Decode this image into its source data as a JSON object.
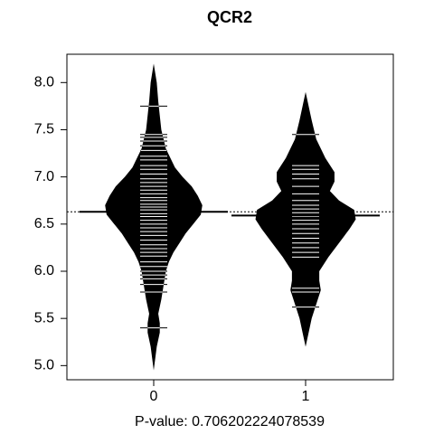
{
  "chart_data": {
    "type": "beanplot",
    "title": "QCR2",
    "xlabel": "P-value: 0.706202224078539",
    "categories": [
      "0",
      "1"
    ],
    "ylim": [
      4.85,
      8.3
    ],
    "yticks": [
      {
        "value": 5,
        "label": "5.0"
      },
      5.5,
      {
        "value": 6,
        "label": "6.0"
      },
      6.5,
      {
        "value": 7,
        "label": "7.0"
      },
      7.5,
      {
        "value": 8,
        "label": "8.0"
      }
    ],
    "color": "#000000",
    "overall_mean": 6.63,
    "beans": [
      {
        "mean": 6.63,
        "observations": [
          7.75,
          7.45,
          7.42,
          7.38,
          7.33,
          7.28,
          7.22,
          7.18,
          7.12,
          7.08,
          7.03,
          6.98,
          6.94,
          6.9,
          6.86,
          6.82,
          6.78,
          6.75,
          6.71,
          6.68,
          6.65,
          6.61,
          6.58,
          6.54,
          6.5,
          6.46,
          6.42,
          6.38,
          6.33,
          6.28,
          6.24,
          6.2,
          6.16,
          6.1,
          6.05,
          6.0,
          5.96,
          5.92,
          5.86,
          5.78,
          5.4
        ],
        "density": {
          "y": [
            8.2,
            8.0,
            7.8,
            7.5,
            7.3,
            7.1,
            7.0,
            6.9,
            6.8,
            6.7,
            6.6,
            6.5,
            6.4,
            6.3,
            6.2,
            6.1,
            6.0,
            5.9,
            5.7,
            5.55,
            5.45,
            5.35,
            5.2,
            4.95
          ],
          "width": [
            0.0,
            0.02,
            0.03,
            0.05,
            0.08,
            0.14,
            0.19,
            0.25,
            0.29,
            0.32,
            0.31,
            0.26,
            0.21,
            0.17,
            0.13,
            0.1,
            0.08,
            0.07,
            0.05,
            0.03,
            0.04,
            0.04,
            0.02,
            0.0
          ]
        }
      },
      {
        "mean": 6.59,
        "observations": [
          7.45,
          7.12,
          7.08,
          7.03,
          6.98,
          6.9,
          6.82,
          6.75,
          6.7,
          6.66,
          6.62,
          6.58,
          6.54,
          6.5,
          6.45,
          6.4,
          6.35,
          6.3,
          6.25,
          6.2,
          6.15,
          5.82,
          5.78,
          5.62
        ],
        "density": {
          "y": [
            7.9,
            7.75,
            7.6,
            7.4,
            7.2,
            7.05,
            6.95,
            6.85,
            6.75,
            6.65,
            6.55,
            6.45,
            6.3,
            6.15,
            6.0,
            5.9,
            5.8,
            5.65,
            5.5,
            5.35,
            5.2
          ],
          "width": [
            0.0,
            0.02,
            0.04,
            0.07,
            0.13,
            0.19,
            0.19,
            0.16,
            0.22,
            0.32,
            0.33,
            0.29,
            0.22,
            0.15,
            0.09,
            0.09,
            0.1,
            0.07,
            0.04,
            0.02,
            0.0
          ]
        }
      }
    ]
  }
}
